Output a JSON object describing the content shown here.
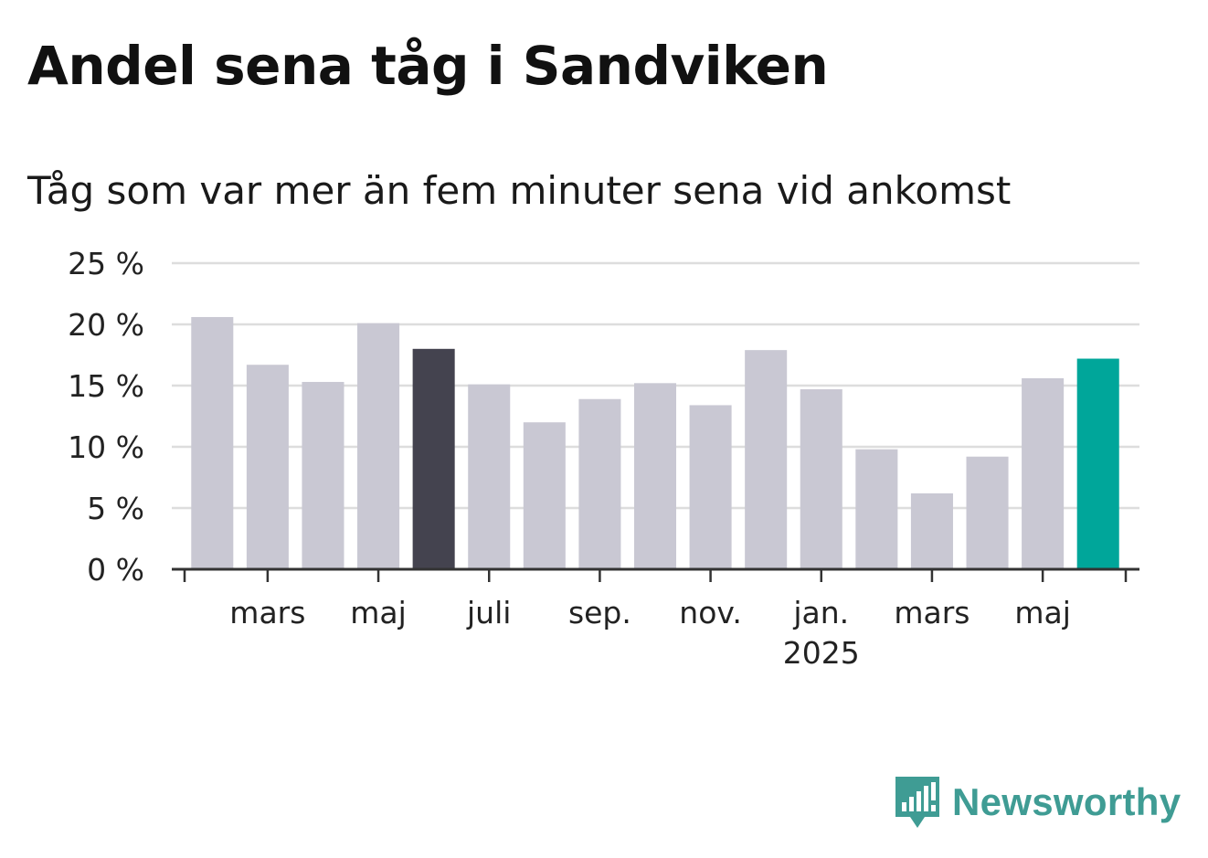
{
  "title": "Andel sena tåg i Sandviken",
  "subtitle": "Tåg som var mer än fem minuter sena vid ankomst",
  "brand": {
    "name": "Newsworthy",
    "color": "#3f9c94",
    "icon": "bar-chart-speech-bubble-icon"
  },
  "colors": {
    "bar": "#c9c8d3",
    "highlight": "#44434f",
    "latest": "#00a69a",
    "grid": "#dddddd",
    "axis": "#333333",
    "text": "#222222"
  },
  "chart_data": {
    "type": "bar",
    "categories": [
      "2024-02",
      "2024-03",
      "2024-04",
      "2024-05",
      "2024-06",
      "2024-07",
      "2024-08",
      "2024-09",
      "2024-10",
      "2024-11",
      "2024-12",
      "2025-01",
      "2025-02",
      "2025-03",
      "2025-04",
      "2025-05",
      "2025-06"
    ],
    "values": [
      20.6,
      16.7,
      15.3,
      20.1,
      18.0,
      15.1,
      12.0,
      13.9,
      15.2,
      13.4,
      17.9,
      14.7,
      9.8,
      6.2,
      9.2,
      15.6,
      17.2
    ],
    "highlight_index": 4,
    "latest_index": 16,
    "ylim": [
      0,
      25
    ],
    "yticks": [
      0,
      5,
      10,
      15,
      20,
      25
    ],
    "ytick_labels": [
      "0 %",
      "5 %",
      "10 %",
      "15 %",
      "20 %",
      "25 %"
    ],
    "xtick_labels": [
      {
        "index": 1,
        "label": "mars"
      },
      {
        "index": 3,
        "label": "maj"
      },
      {
        "index": 5,
        "label": "juli"
      },
      {
        "index": 7,
        "label": "sep."
      },
      {
        "index": 9,
        "label": "nov."
      },
      {
        "index": 11,
        "label": "jan.",
        "sublabel": "2025"
      },
      {
        "index": 13,
        "label": "mars"
      },
      {
        "index": 15,
        "label": "maj"
      }
    ],
    "xlabel": "",
    "ylabel": "",
    "grid": true
  }
}
